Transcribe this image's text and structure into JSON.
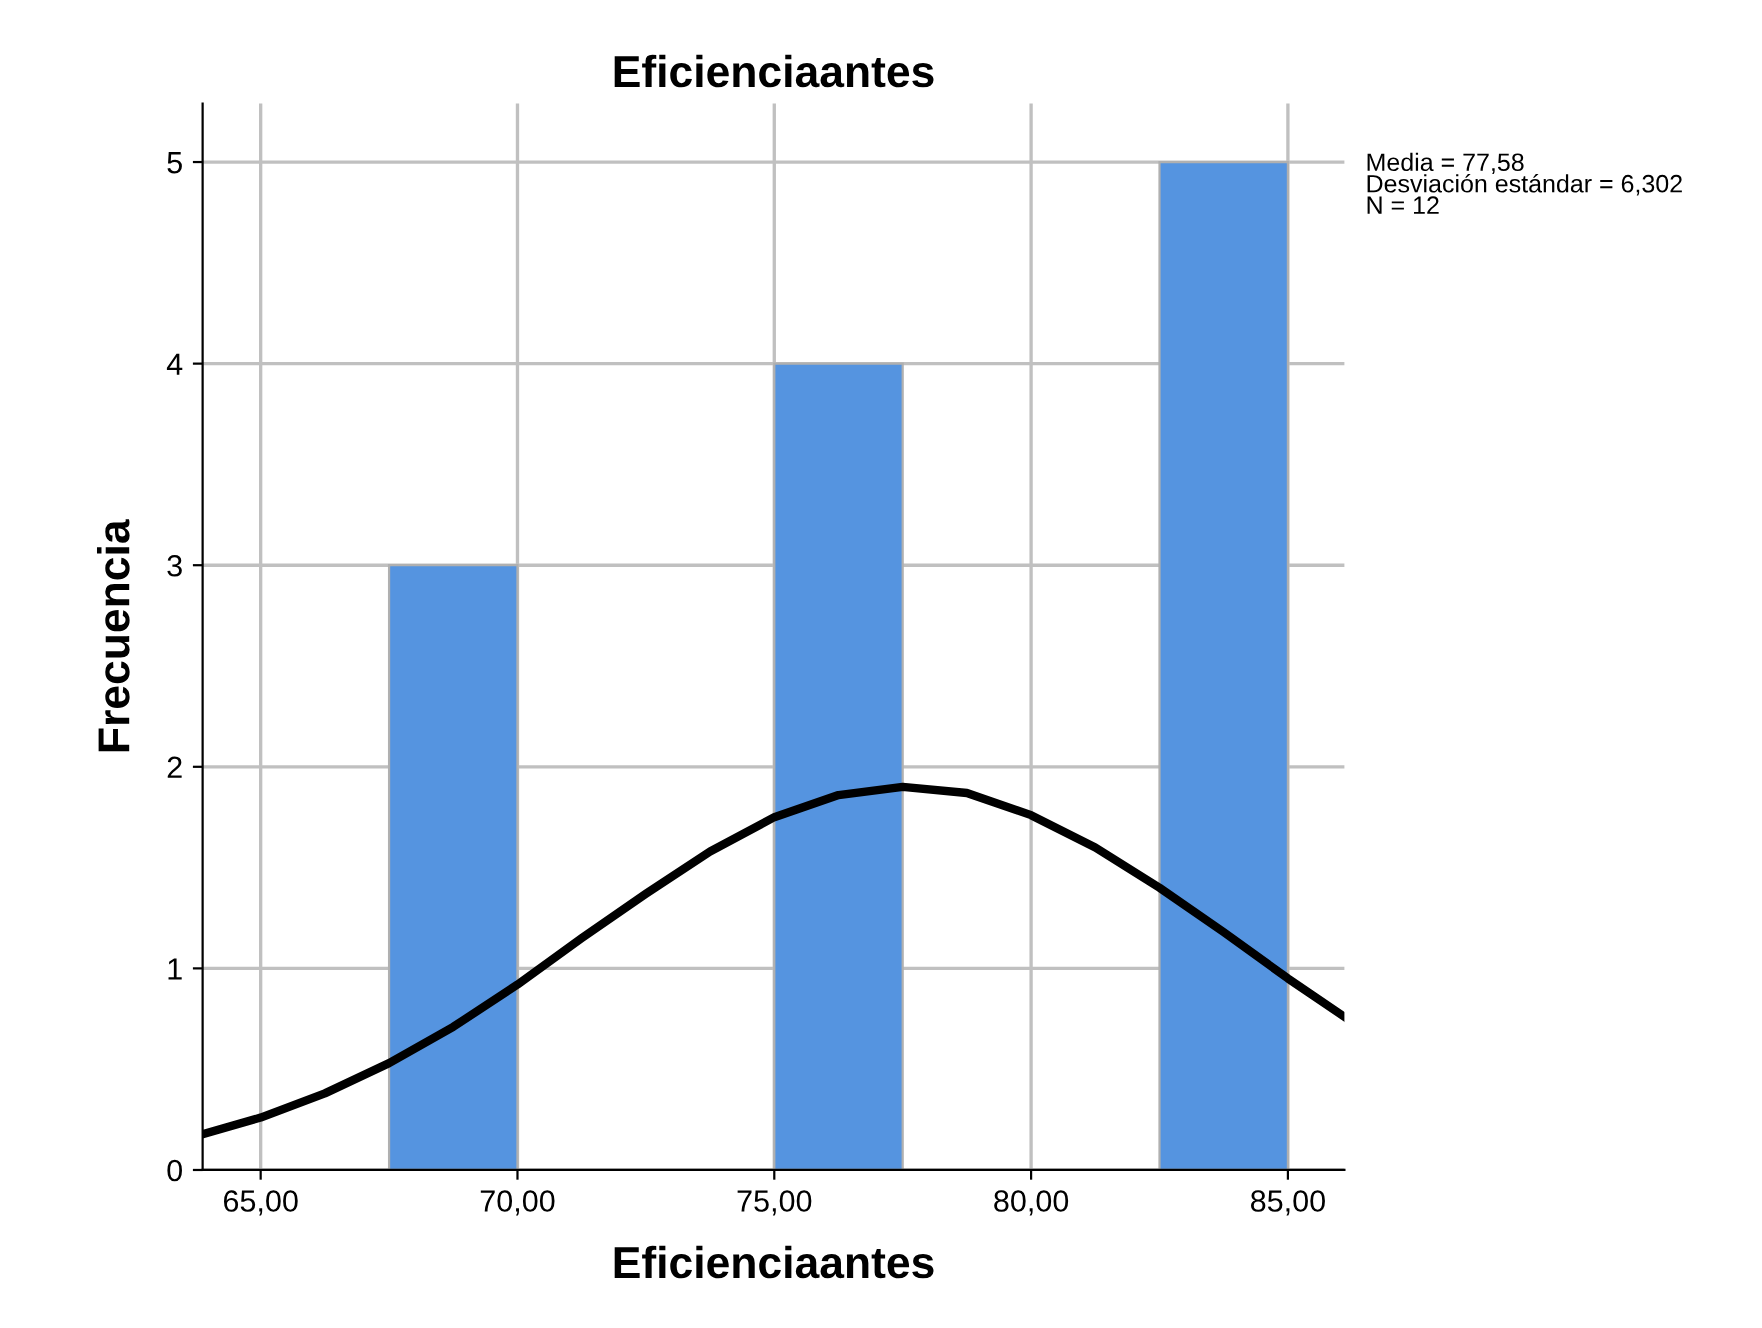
{
  "chart_data": {
    "type": "histogram",
    "title": "Eficienciaantes",
    "xlabel": "Eficienciaantes",
    "ylabel": "Frecuencia",
    "bins": [
      67.5,
      70,
      72.5,
      75,
      77.5,
      80,
      82.5,
      85
    ],
    "values": [
      3,
      0,
      0,
      4,
      0,
      0,
      5
    ],
    "color": "#5594e0",
    "series": [
      {
        "type": "line",
        "color": "#000000",
        "x": [
          63.9,
          65,
          66.25,
          67.5,
          68.75,
          70,
          71.25,
          72.5,
          73.75,
          75,
          76.25,
          77.5,
          78.75,
          80,
          81.25,
          82.5,
          83.75,
          85,
          86.1
        ],
        "values": [
          0.18,
          0.26,
          0.38,
          0.53,
          0.71,
          0.92,
          1.15,
          1.37,
          1.58,
          1.75,
          1.86,
          1.9,
          1.87,
          1.76,
          1.6,
          1.4,
          1.18,
          0.95,
          0.76
        ]
      }
    ],
    "xlim": [
      63.87,
      86.1
    ],
    "ylim": [
      0,
      5.29
    ],
    "xticks": [
      {
        "value": 65,
        "label": "65,00"
      },
      {
        "value": 70,
        "label": "70,00"
      },
      {
        "value": 75,
        "label": "75,00"
      },
      {
        "value": 80,
        "label": "80,00"
      },
      {
        "value": 85,
        "label": "85,00"
      }
    ],
    "yticks": [
      0,
      1,
      2,
      3,
      4,
      5
    ],
    "grid": true,
    "annotations": [
      "Media = 77,58",
      "Desviación estándar = 6,302",
      "N = 12"
    ]
  }
}
